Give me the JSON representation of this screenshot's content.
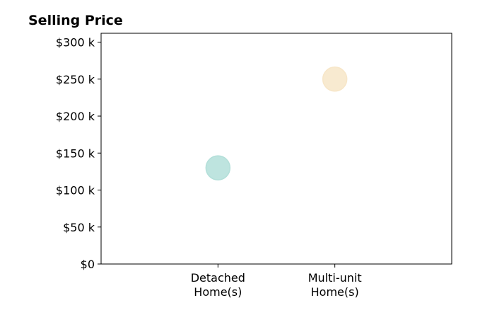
{
  "chart_data": {
    "type": "scatter",
    "title": "Selling Price",
    "xlabel": "",
    "ylabel": "",
    "categories": [
      [
        "Detached",
        "Home(s)"
      ],
      [
        "Multi-unit",
        "Home(s)"
      ]
    ],
    "x_range": [
      -1,
      2
    ],
    "ylim": [
      0,
      312000
    ],
    "y_ticks": [
      0,
      50000,
      100000,
      150000,
      200000,
      250000,
      300000
    ],
    "y_tick_labels": [
      "$0",
      "$50 k",
      "$100 k",
      "$150 k",
      "$200 k",
      "$250 k",
      "$300 k"
    ],
    "grid": false,
    "points": [
      {
        "category_index": 0,
        "value": 130000,
        "color": "#b3dfd9"
      },
      {
        "category_index": 1,
        "value": 250000,
        "color": "#f7e6c8"
      }
    ]
  }
}
